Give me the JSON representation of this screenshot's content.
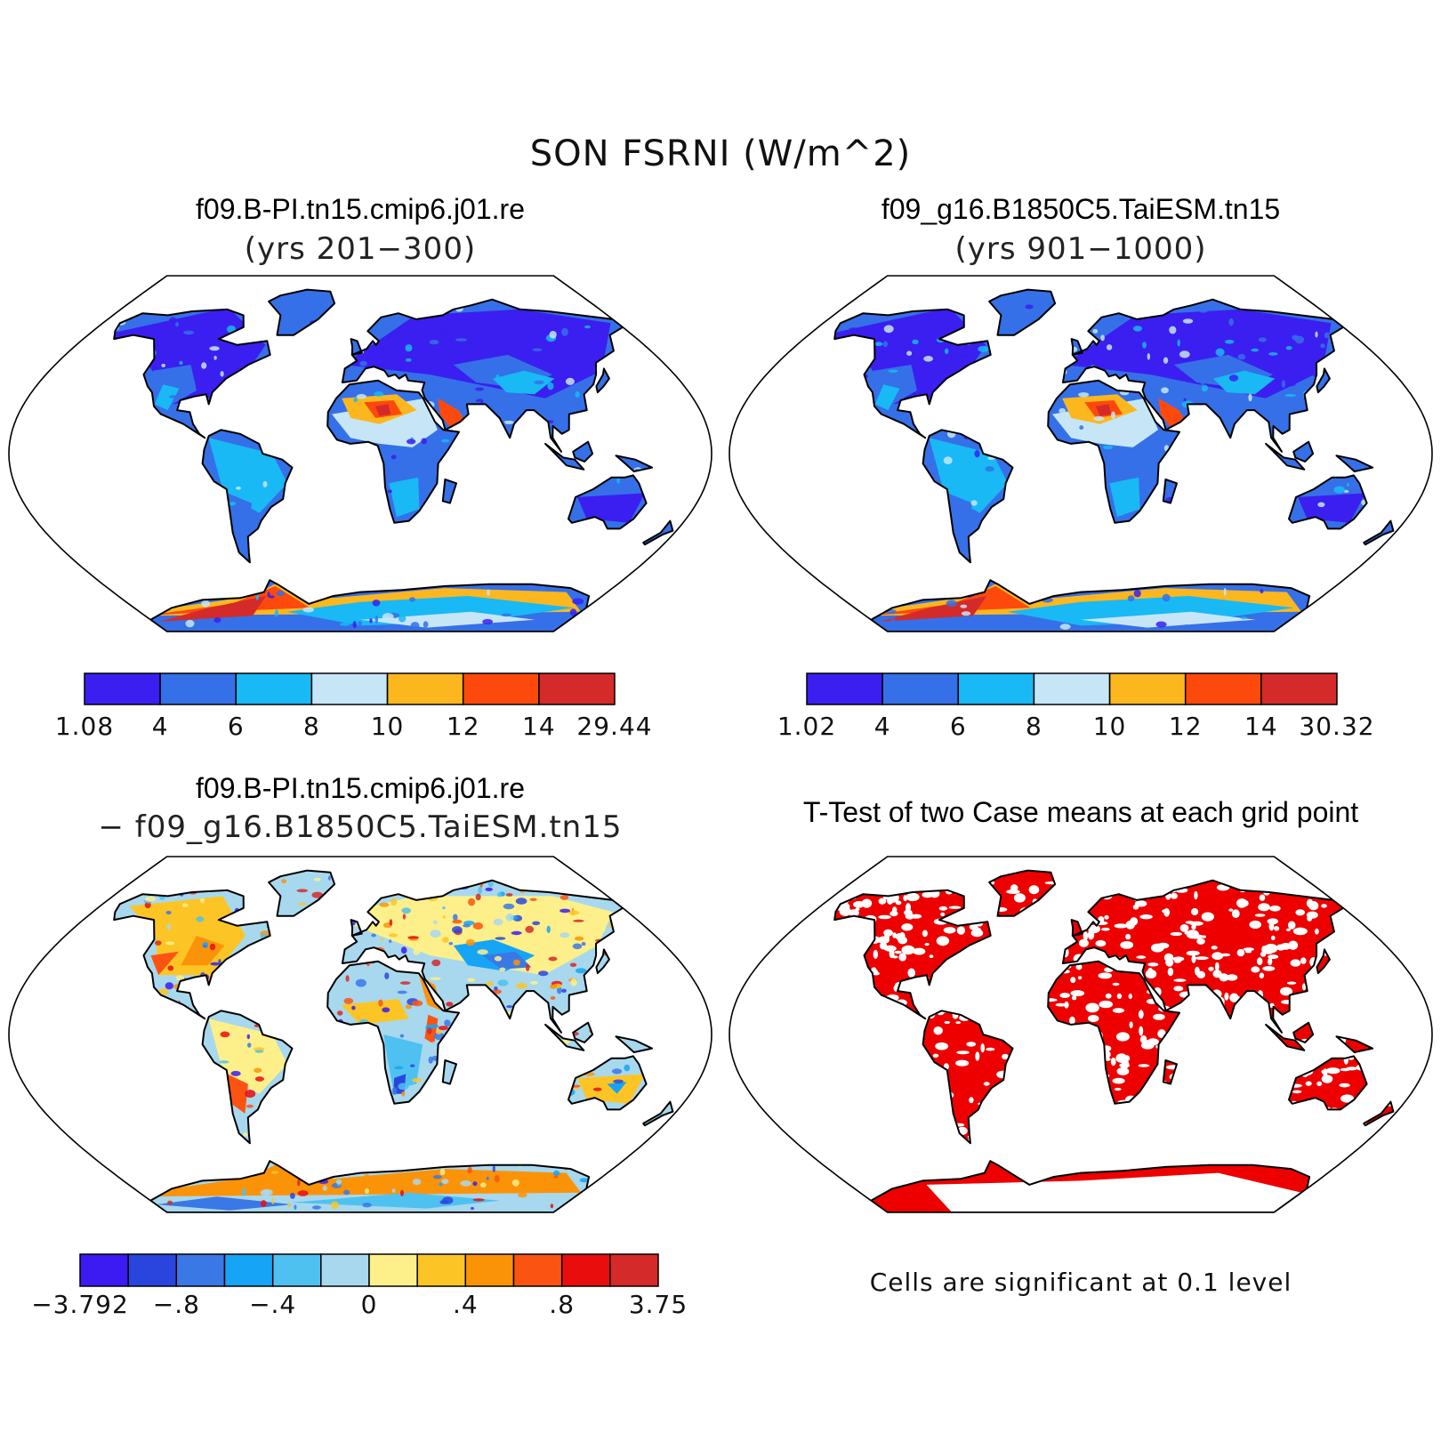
{
  "figure": {
    "title": "SON FSRNI (W/m^2)"
  },
  "panels": [
    {
      "id": "case1",
      "title": "f09.B-PI.tn15.cmip6.j01.re",
      "subtitle": "(yrs 201−300)",
      "kind": "field",
      "colorbar": {
        "colors": [
          "#3a1ff0",
          "#3570e8",
          "#19b9f5",
          "#c6e6f7",
          "#fcb71e",
          "#fd4a0c",
          "#d42a2a"
        ],
        "labels": [
          "1.08",
          "4",
          "6",
          "8",
          "10",
          "12",
          "14",
          "29.44"
        ]
      }
    },
    {
      "id": "case2",
      "title": "f09_g16.B1850C5.TaiESM.tn15",
      "subtitle": "(yrs 901−1000)",
      "kind": "field",
      "colorbar": {
        "colors": [
          "#3a1ff0",
          "#3570e8",
          "#19b9f5",
          "#c6e6f7",
          "#fcb71e",
          "#fd4a0c",
          "#d42a2a"
        ],
        "labels": [
          "1.02",
          "4",
          "6",
          "8",
          "10",
          "12",
          "14",
          "30.32"
        ]
      }
    },
    {
      "id": "diff",
      "title": "f09.B-PI.tn15.cmip6.j01.re",
      "subtitle": "− f09_g16.B1850C5.TaiESM.tn15",
      "kind": "diff",
      "colorbar": {
        "colors": [
          "#3c1af2",
          "#2a45de",
          "#3a78e6",
          "#16a4f6",
          "#4fc1f0",
          "#a8d8ee",
          "#fdf08a",
          "#fcc525",
          "#fb9309",
          "#fb5412",
          "#ea0d0d",
          "#d42a2a"
        ],
        "labels": [
          "−3.792",
          "−.8",
          "−.4",
          "0",
          ".4",
          ".8",
          "3.75"
        ]
      }
    },
    {
      "id": "ttest",
      "title": "T-Test of two Case means at each grid point",
      "subtitle": "",
      "kind": "signif",
      "note": "Cells are significant at 0.1 level",
      "colors": {
        "signif": "#ee0000"
      }
    }
  ]
}
